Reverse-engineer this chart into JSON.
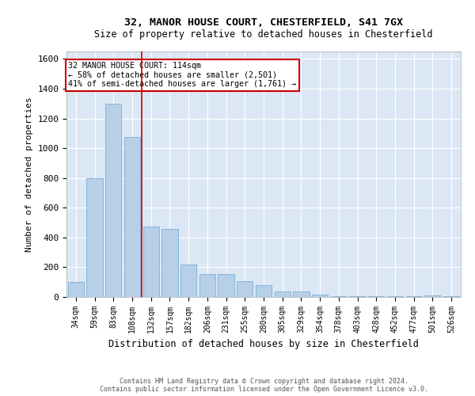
{
  "title1": "32, MANOR HOUSE COURT, CHESTERFIELD, S41 7GX",
  "title2": "Size of property relative to detached houses in Chesterfield",
  "xlabel": "Distribution of detached houses by size in Chesterfield",
  "ylabel": "Number of detached properties",
  "footer1": "Contains HM Land Registry data © Crown copyright and database right 2024.",
  "footer2": "Contains public sector information licensed under the Open Government Licence v3.0.",
  "bar_color": "#b8cfe8",
  "bar_edge_color": "#7aafd4",
  "bg_color": "#dce7f5",
  "grid_color": "#ffffff",
  "annotation_box_color": "#cc0000",
  "vline_color": "#cc0000",
  "categories": [
    "34sqm",
    "59sqm",
    "83sqm",
    "108sqm",
    "132sqm",
    "157sqm",
    "182sqm",
    "206sqm",
    "231sqm",
    "255sqm",
    "280sqm",
    "305sqm",
    "329sqm",
    "354sqm",
    "378sqm",
    "403sqm",
    "428sqm",
    "452sqm",
    "477sqm",
    "501sqm",
    "526sqm"
  ],
  "values": [
    100,
    800,
    1300,
    1075,
    475,
    460,
    220,
    155,
    155,
    105,
    80,
    35,
    35,
    15,
    5,
    5,
    5,
    5,
    5,
    10,
    5
  ],
  "vline_x": 3.5,
  "annotation_text": "32 MANOR HOUSE COURT: 114sqm\n← 58% of detached houses are smaller (2,501)\n41% of semi-detached houses are larger (1,761) →",
  "ylim": [
    0,
    1650
  ],
  "yticks": [
    0,
    200,
    400,
    600,
    800,
    1000,
    1200,
    1400,
    1600
  ]
}
